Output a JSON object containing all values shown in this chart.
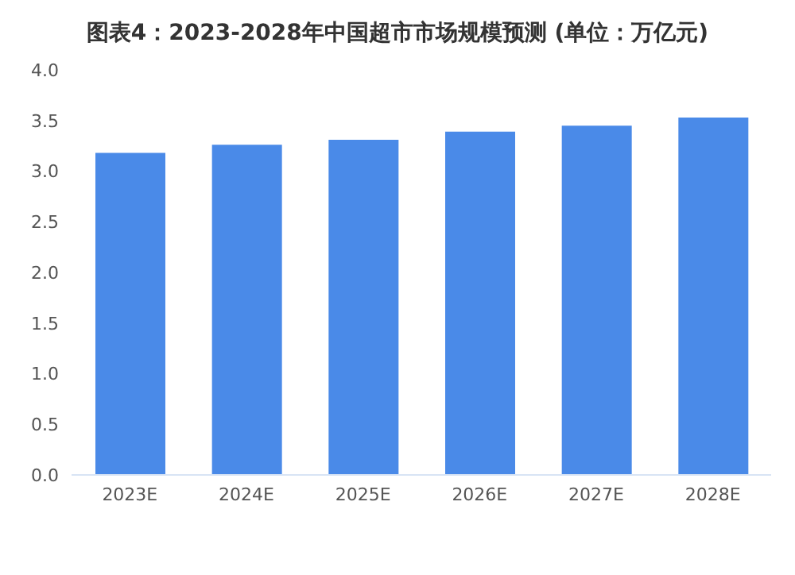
{
  "chart_data": {
    "type": "bar",
    "title": "图表4：2023-2028年中国超市市场规模预测 (单位：万亿元)",
    "categories": [
      "2023E",
      "2024E",
      "2025E",
      "2026E",
      "2027E",
      "2028E"
    ],
    "values": [
      3.18,
      3.26,
      3.31,
      3.39,
      3.45,
      3.53
    ],
    "color": "#4a8ae8",
    "ylim": [
      0,
      4
    ],
    "yticks": [
      {
        "value": 0,
        "label": "0.0"
      },
      0.5,
      {
        "value": 1,
        "label": "1.0"
      },
      1.5,
      {
        "value": 2,
        "label": "2.0"
      },
      2.5,
      {
        "value": 3,
        "label": "3.0"
      },
      3.5,
      {
        "value": 4,
        "label": "4.0"
      }
    ],
    "grid": false
  }
}
